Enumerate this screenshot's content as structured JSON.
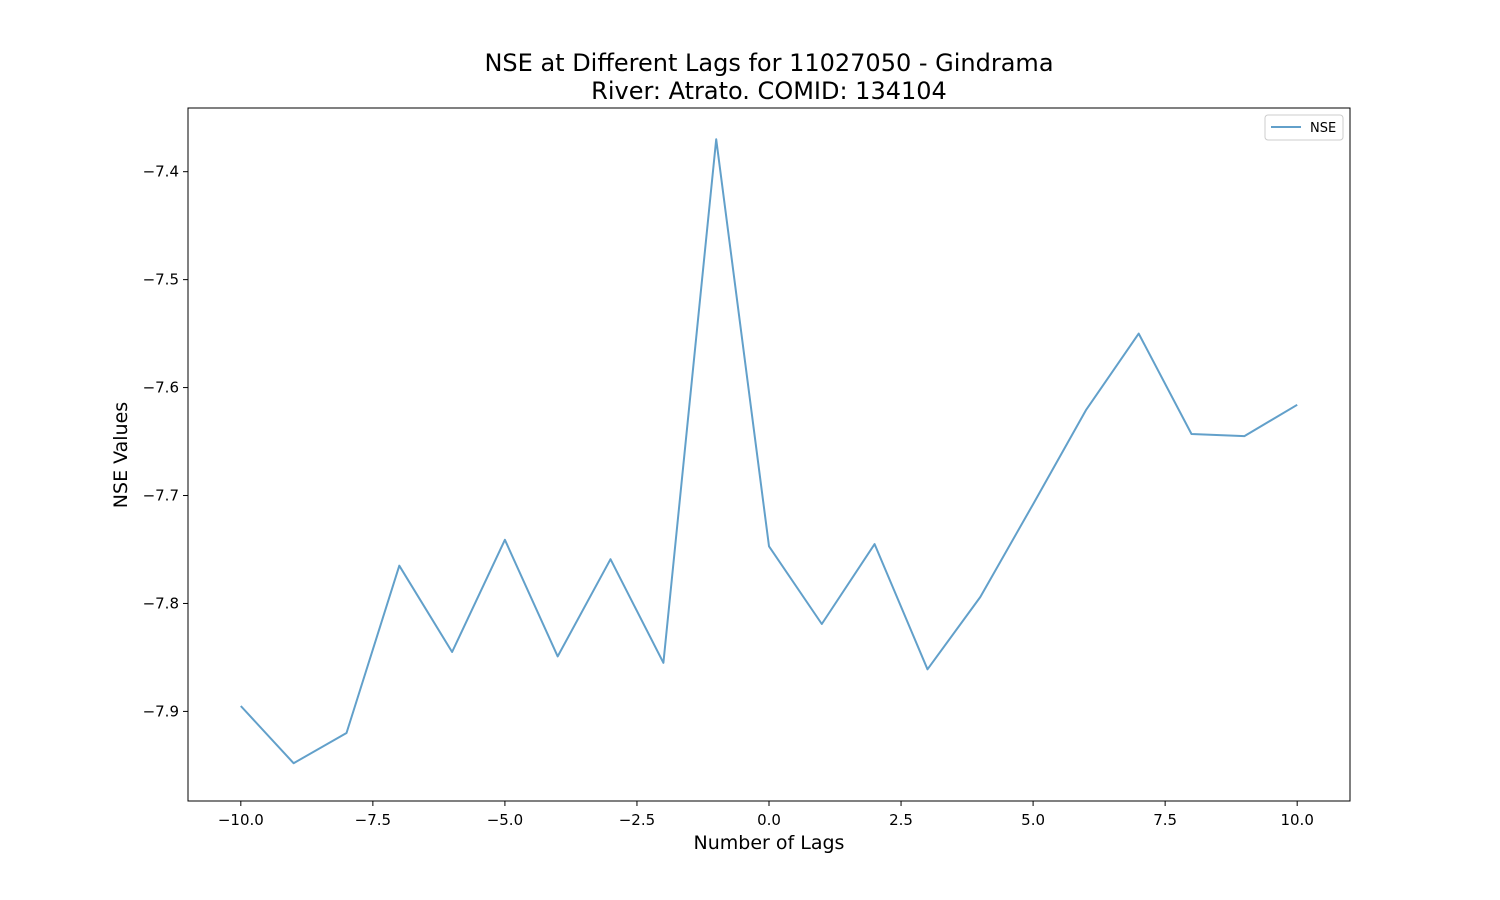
{
  "chart_data": {
    "type": "line",
    "title": "NSE at Different Lags for 11027050 - Gindrama",
    "subtitle": "River: Atrato. COMID: 134104",
    "xlabel": "Number of Lags",
    "ylabel": "NSE Values",
    "xlim": [
      -11,
      11
    ],
    "ylim": [
      -7.983,
      -7.341
    ],
    "x_ticks": [
      -10.0,
      -7.5,
      -5.0,
      -2.5,
      0.0,
      2.5,
      5.0,
      7.5,
      10.0
    ],
    "x_tick_labels": [
      "−10.0",
      "−7.5",
      "−5.0",
      "−2.5",
      "0.0",
      "2.5",
      "5.0",
      "7.5",
      "10.0"
    ],
    "y_ticks": [
      -7.9,
      -7.8,
      -7.7,
      -7.6,
      -7.5,
      -7.4
    ],
    "y_tick_labels": [
      "−7.9",
      "−7.8",
      "−7.7",
      "−7.6",
      "−7.5",
      "−7.4"
    ],
    "grid": false,
    "legend_position": "top-right",
    "series": [
      {
        "name": "NSE",
        "color": "#1f77b4",
        "x": [
          -10,
          -9,
          -8,
          -7,
          -6,
          -5,
          -4,
          -3,
          -2,
          -1,
          0,
          1,
          2,
          3,
          4,
          5,
          6,
          7,
          8,
          9,
          10
        ],
        "y": [
          -7.895,
          -7.948,
          -7.92,
          -7.765,
          -7.845,
          -7.741,
          -7.849,
          -7.759,
          -7.855,
          -7.37,
          -7.747,
          -7.819,
          -7.745,
          -7.861,
          -7.794,
          -7.708,
          -7.621,
          -7.55,
          -7.643,
          -7.645,
          -7.616
        ]
      }
    ]
  }
}
